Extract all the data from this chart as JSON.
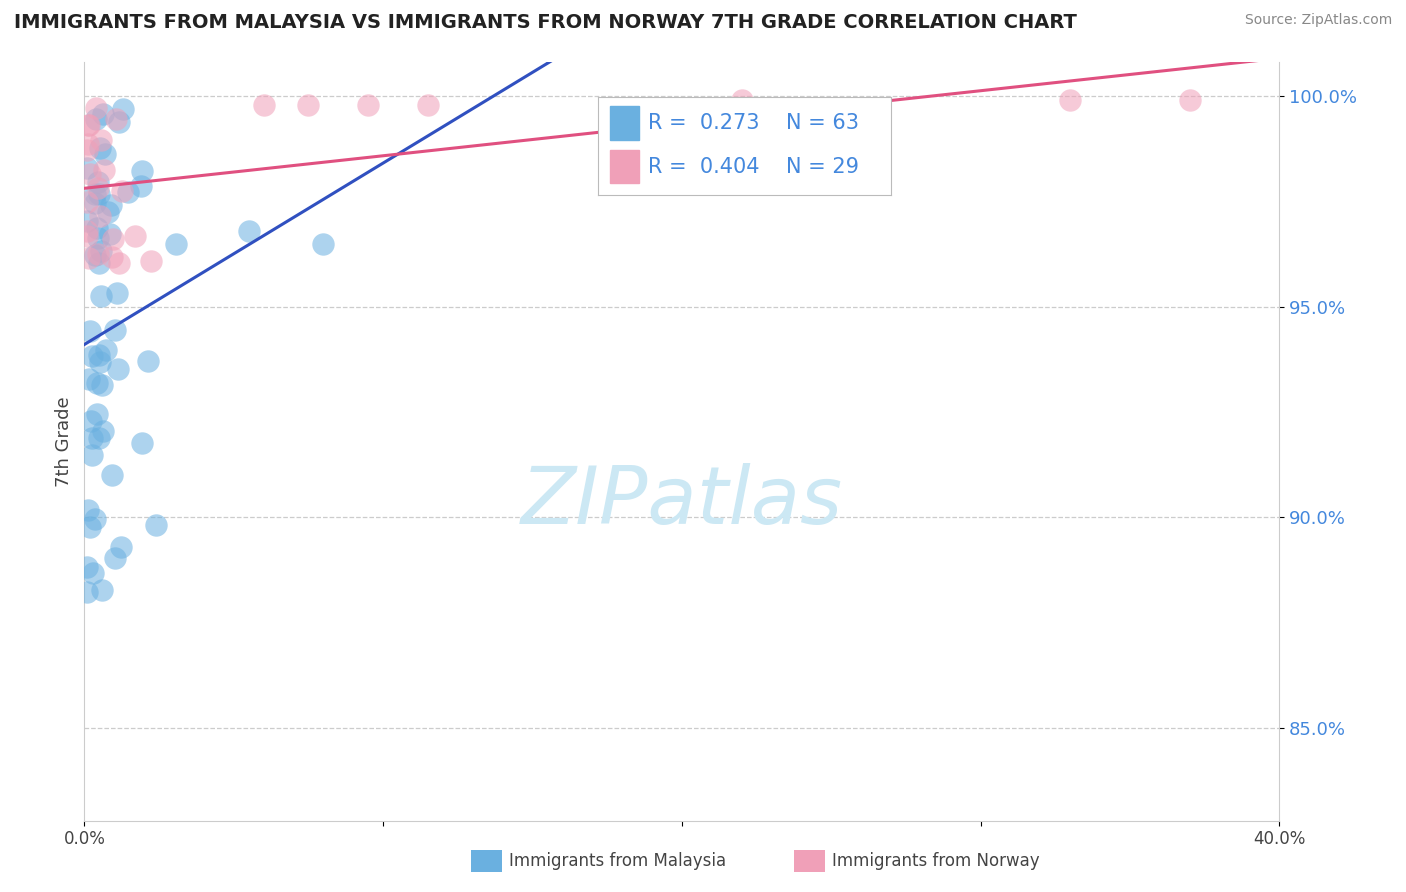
{
  "title": "IMMIGRANTS FROM MALAYSIA VS IMMIGRANTS FROM NORWAY 7TH GRADE CORRELATION CHART",
  "source": "Source: ZipAtlas.com",
  "xlabel_malaysia": "Immigrants from Malaysia",
  "xlabel_norway": "Immigrants from Norway",
  "ylabel": "7th Grade",
  "xlim": [
    0.0,
    0.4
  ],
  "ylim": [
    0.828,
    1.008
  ],
  "yticks": [
    0.85,
    0.9,
    0.95,
    1.0
  ],
  "ytick_labels": [
    "85.0%",
    "90.0%",
    "95.0%",
    "100.0%"
  ],
  "R_malaysia": 0.273,
  "N_malaysia": 63,
  "R_norway": 0.404,
  "N_norway": 29,
  "color_malaysia": "#6ab0e0",
  "color_norway": "#f0a0b8",
  "line_color_malaysia": "#3050c0",
  "line_color_norway": "#e05080",
  "background_color": "#ffffff",
  "watermark_color": "#cce8f4",
  "tick_color": "#4488dd",
  "grid_color": "#cccccc",
  "spine_color": "#cccccc"
}
